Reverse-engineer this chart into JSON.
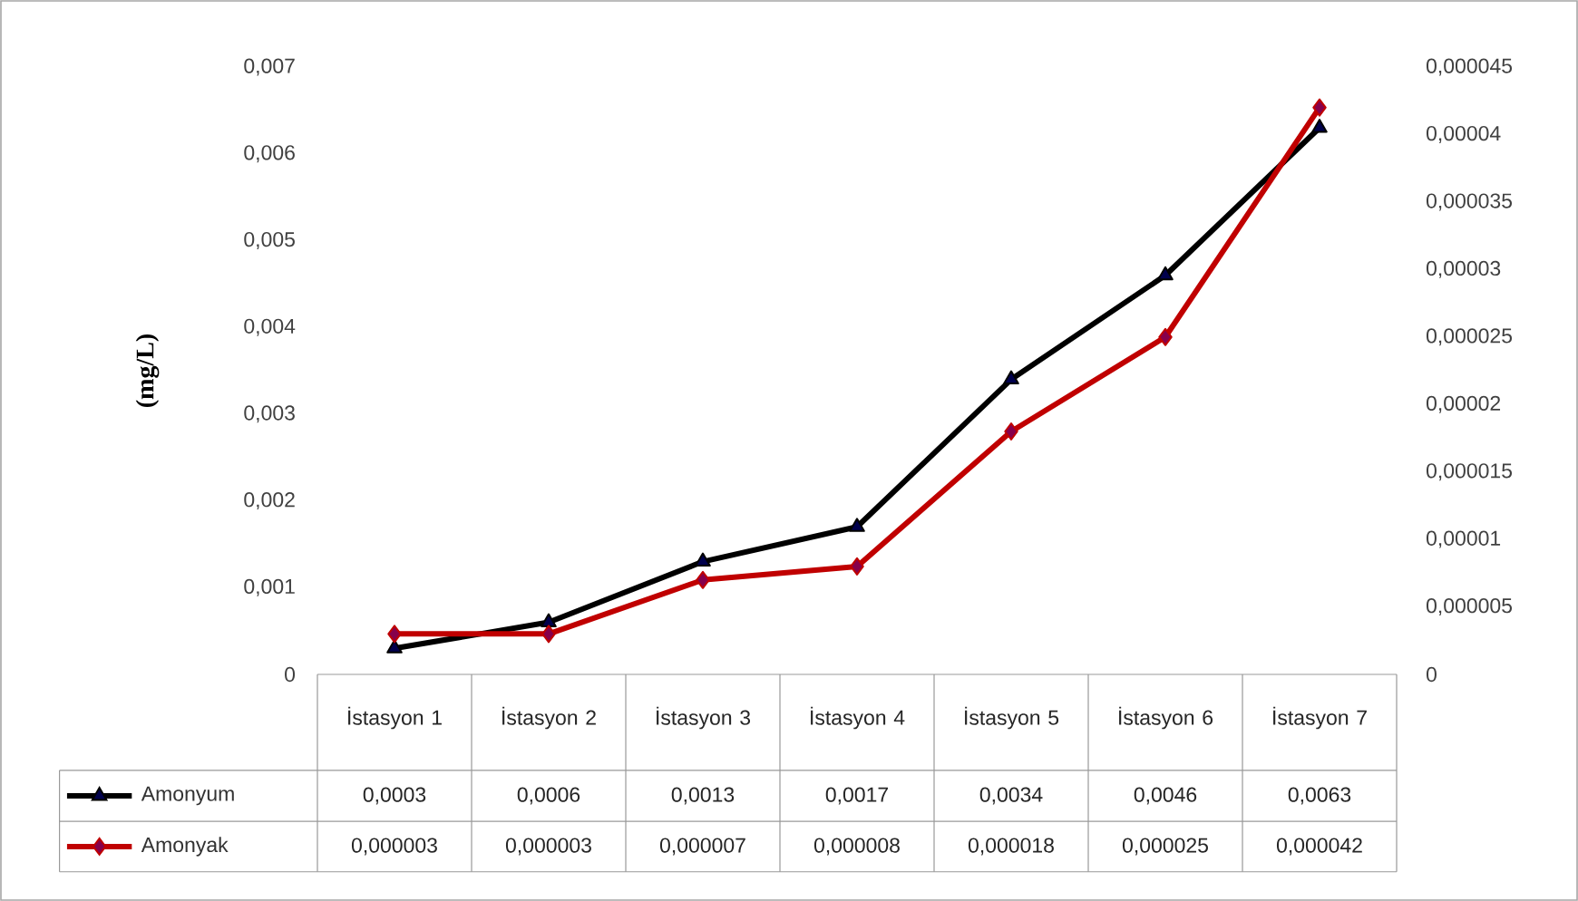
{
  "chart_data": {
    "type": "line",
    "ylabel": "(mg/L)",
    "categories": [
      "İstasyon 1",
      "İstasyon 2",
      "İstasyon 3",
      "İstasyon 4",
      "İstasyon 5",
      "İstasyon 6",
      "İstasyon 7"
    ],
    "series": [
      {
        "name": "Amonyum",
        "color": "#000000",
        "marker": "triangle",
        "values": [
          0.0003,
          0.0006,
          0.0013,
          0.0017,
          0.0034,
          0.0046,
          0.0063
        ],
        "value_labels": [
          "0,0003",
          "0,0006",
          "0,0013",
          "0,0017",
          "0,0034",
          "0,0046",
          "0,0063"
        ]
      },
      {
        "name": "Amonyak",
        "color": "#c00000",
        "marker": "diamond",
        "axis": "y2",
        "values": [
          3e-06,
          3e-06,
          7e-06,
          8e-06,
          1.8e-05,
          2.5e-05,
          4.2e-05
        ],
        "value_labels": [
          "0,000003",
          "0,000003",
          "0,000007",
          "0,000008",
          "0,000018",
          "0,000025",
          "0,000042"
        ]
      }
    ],
    "legend": "bottom left",
    "ylim": [
      0,
      0.007
    ],
    "yticks": [
      0,
      {
        "value": 0.001,
        "label": "0,001"
      },
      {
        "value": 0.002,
        "label": "0,002"
      },
      {
        "value": 0.003,
        "label": "0,003"
      },
      {
        "value": 0.004,
        "label": "0,004"
      },
      {
        "value": 0.005,
        "label": "0,005"
      },
      {
        "value": 0.006,
        "label": "0,006"
      },
      {
        "value": 0.007,
        "label": "0,007"
      }
    ],
    "y2lim": [
      0,
      4.5e-05
    ],
    "y2ticks": [
      0,
      {
        "value": 5e-06,
        "label": "0,000005"
      },
      {
        "value": 1e-05,
        "label": "0,00001"
      },
      {
        "value": 1.5e-05,
        "label": "0,000015"
      },
      {
        "value": 2e-05,
        "label": "0,00002"
      },
      {
        "value": 2.5e-05,
        "label": "0,000025"
      },
      {
        "value": 3e-05,
        "label": "0,00003"
      },
      {
        "value": 3.5e-05,
        "label": "0,000035"
      },
      {
        "value": 4e-05,
        "label": "0,00004"
      },
      {
        "value": 4.5e-05,
        "label": "0,000045"
      }
    ]
  }
}
